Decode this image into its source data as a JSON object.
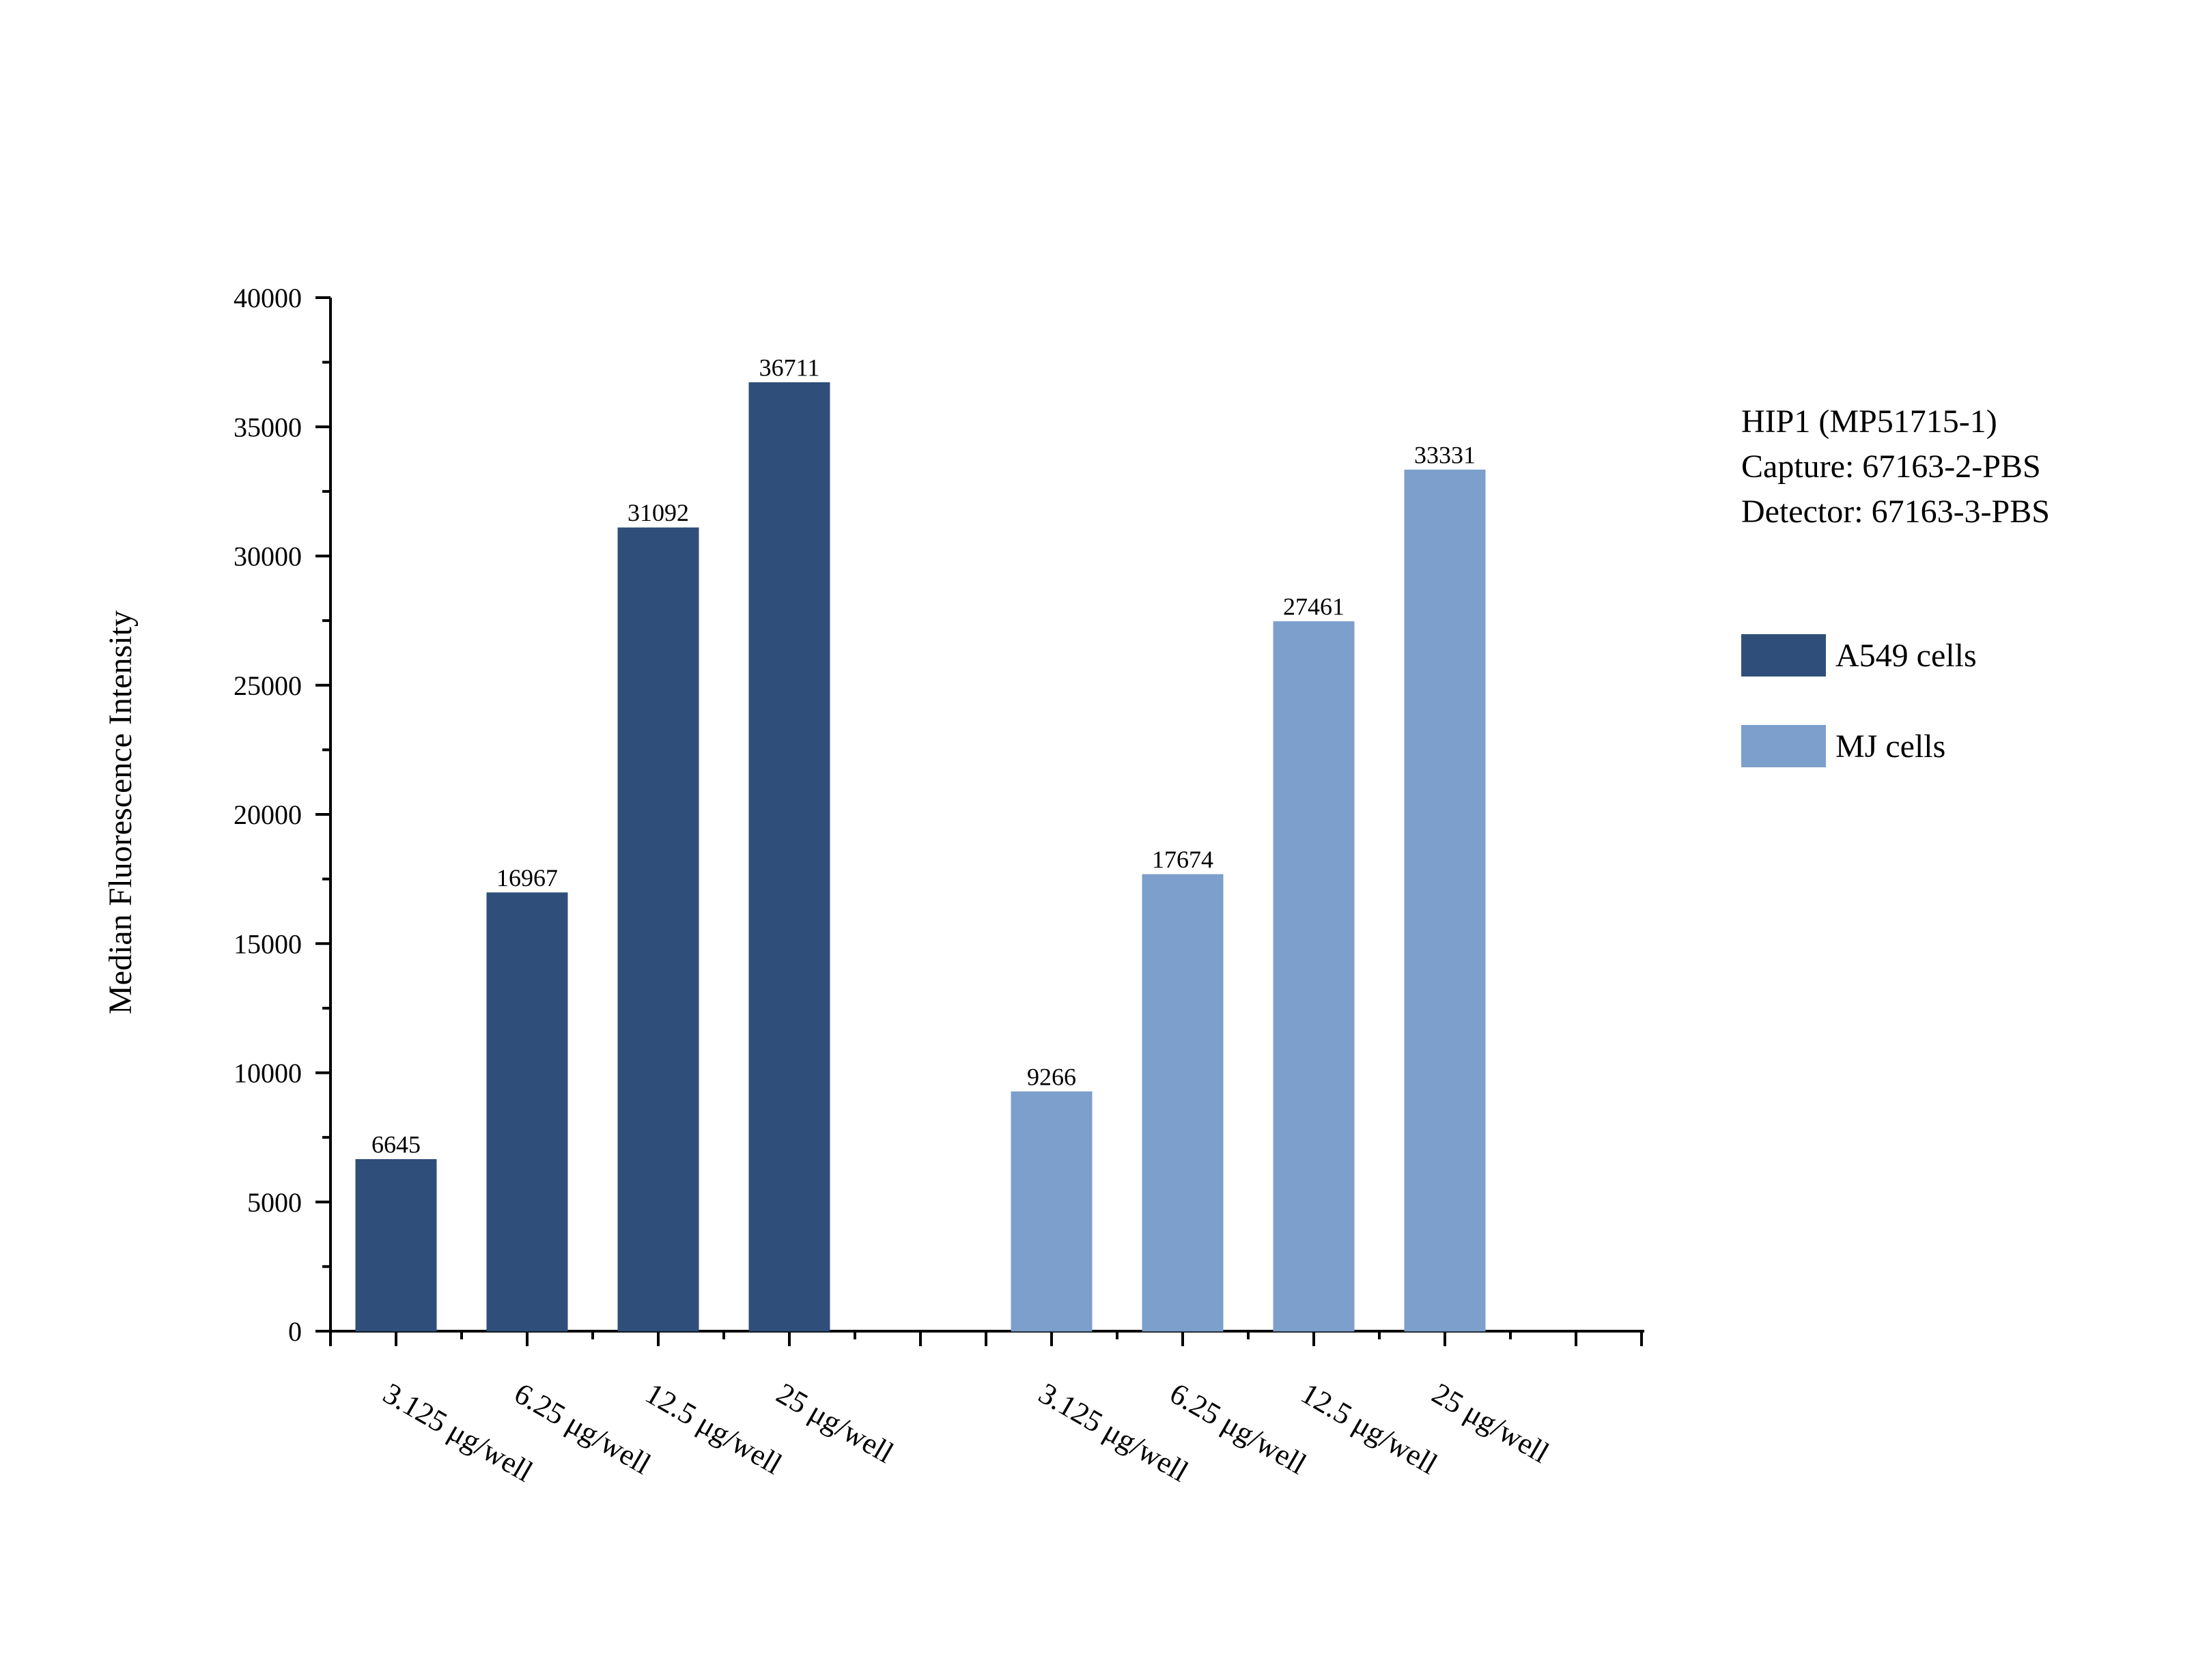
{
  "chart_data": {
    "type": "bar",
    "ylabel": "Median Fluorescence Intensity",
    "ylim": [
      0,
      40000
    ],
    "yticks": [
      0,
      5000,
      10000,
      15000,
      20000,
      25000,
      30000,
      35000,
      40000
    ],
    "annotation_lines": [
      "HIP1 (MP51715-1)",
      "Capture: 67163-2-PBS",
      "Detector: 67163-3-PBS"
    ],
    "legend_position": "right",
    "series": [
      {
        "name": "A549 cells",
        "color": "#2f4f7a",
        "categories": [
          "3.125 μg/well",
          "6.25 μg/well",
          "12.5 μg/well",
          "25 μg/well"
        ],
        "values": [
          6645,
          16967,
          31092,
          36711
        ]
      },
      {
        "name": "MJ cells",
        "color": "#7c9fcc",
        "categories": [
          "3.125 μg/well",
          "6.25 μg/well",
          "12.5 μg/well",
          "25 μg/well"
        ],
        "values": [
          9266,
          17674,
          27461,
          33331
        ]
      }
    ]
  }
}
